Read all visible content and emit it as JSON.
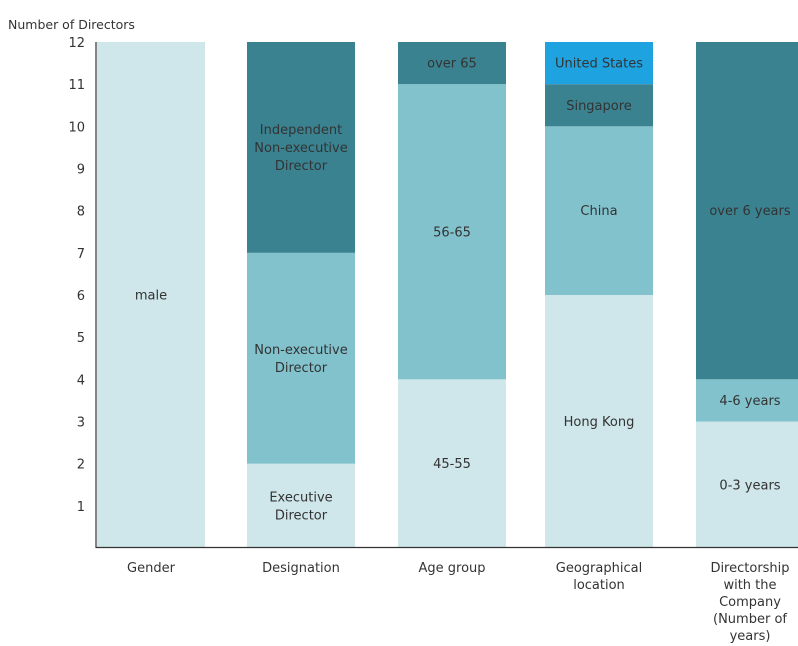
{
  "chart_data": {
    "type": "bar",
    "stacked": true,
    "ylabel": "Number of Directors",
    "xlabel": "",
    "ylim": [
      0,
      12
    ],
    "yticks": [
      "1",
      "2",
      "3",
      "4",
      "5",
      "6",
      "7",
      "8",
      "9",
      "10",
      "11",
      "12"
    ],
    "categories": [
      "Gender",
      "Designation",
      "Age group",
      "Geographical location",
      "Directorship with the Company (Number of years)"
    ],
    "category_lines": [
      [
        "Gender"
      ],
      [
        "Designation"
      ],
      [
        "Age group"
      ],
      [
        "Geographical",
        "location"
      ],
      [
        "Directorship",
        "with the",
        "Company",
        "(Number of",
        "years)"
      ]
    ],
    "bars": [
      {
        "category": "Gender",
        "segments": [
          {
            "label": "male",
            "lines": [
              "male"
            ],
            "value": 12,
            "color": "#cfe6ea"
          }
        ]
      },
      {
        "category": "Designation",
        "segments": [
          {
            "label": "Executive Director",
            "lines": [
              "Executive",
              "Director"
            ],
            "value": 2,
            "color": "#cfe6ea"
          },
          {
            "label": "Non-executive Director",
            "lines": [
              "Non-executive",
              "Director"
            ],
            "value": 5,
            "color": "#82c2cd"
          },
          {
            "label": "Independent Non-executive Director",
            "lines": [
              "Independent",
              "Non-executive",
              "Director"
            ],
            "value": 5,
            "color": "#3a8290"
          }
        ]
      },
      {
        "category": "Age group",
        "segments": [
          {
            "label": "45-55",
            "lines": [
              "45-55"
            ],
            "value": 4,
            "color": "#cfe6ea"
          },
          {
            "label": "56-65",
            "lines": [
              "56-65"
            ],
            "value": 7,
            "color": "#82c2cd"
          },
          {
            "label": "over 65",
            "lines": [
              "over 65"
            ],
            "value": 1,
            "color": "#3a8290"
          }
        ]
      },
      {
        "category": "Geographical location",
        "segments": [
          {
            "label": "Hong Kong",
            "lines": [
              "Hong Kong"
            ],
            "value": 6,
            "color": "#cfe6ea"
          },
          {
            "label": "China",
            "lines": [
              "China"
            ],
            "value": 4,
            "color": "#82c2cd"
          },
          {
            "label": "Singapore",
            "lines": [
              "Singapore"
            ],
            "value": 1,
            "color": "#3a8290"
          },
          {
            "label": "United States",
            "lines": [
              "United States"
            ],
            "value": 1,
            "color": "#1fa3e0"
          }
        ]
      },
      {
        "category": "Directorship with the Company (Number of years)",
        "segments": [
          {
            "label": "0-3 years",
            "lines": [
              "0-3 years"
            ],
            "value": 3,
            "color": "#cfe6ea"
          },
          {
            "label": "4-6 years",
            "lines": [
              "4-6 years"
            ],
            "value": 1,
            "color": "#82c2cd"
          },
          {
            "label": "over 6 years",
            "lines": [
              "over 6 years"
            ],
            "value": 8,
            "color": "#3a8290"
          }
        ]
      }
    ],
    "grid": false,
    "legend": "none"
  }
}
